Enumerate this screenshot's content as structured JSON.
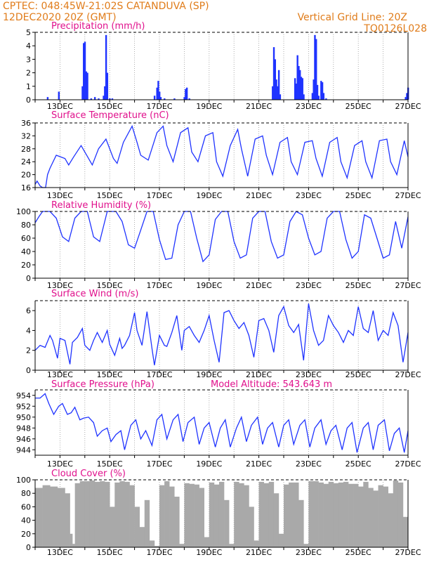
{
  "header": {
    "line1_left": "CPTEC:   048:45W-21:02S   CATANDUVA (SP)",
    "line2_left": "12DEC2020 20Z (GMT)",
    "line1_right": "Vertical Grid Line: 20Z",
    "line2_right": "TQ0126L028"
  },
  "colors": {
    "header": "#e07c1a",
    "title": "#e0108c",
    "series": "#1f33ff",
    "cloud": "#a9a9a9",
    "grid": "#9a9a9a"
  },
  "chart_data": [
    {
      "type": "bar",
      "title": "Precipitation (mm/h)",
      "xticks": [
        "13DEC",
        "15DEC",
        "17DEC",
        "19DEC",
        "21DEC",
        "23DEC",
        "25DEC",
        "27DEC"
      ],
      "ylim": [
        0,
        5
      ],
      "yticks": [
        0,
        1,
        2,
        3,
        4,
        5
      ],
      "x": [
        0.5,
        0.95,
        1.9,
        1.95,
        2.0,
        2.05,
        2.1,
        2.25,
        2.4,
        2.55,
        2.75,
        2.8,
        2.85,
        2.9,
        3.0,
        3.1,
        4.8,
        4.9,
        4.95,
        5.0,
        5.05,
        5.2,
        5.6,
        6.0,
        6.05,
        6.1,
        6.2,
        9.55,
        9.6,
        9.65,
        9.7,
        9.75,
        9.8,
        9.85,
        10.45,
        10.5,
        10.55,
        10.6,
        10.65,
        10.7,
        10.75,
        10.8,
        11.15,
        11.2,
        11.25,
        11.3,
        11.35,
        11.4,
        11.5,
        11.55,
        11.6,
        11.7,
        14.9,
        14.95,
        15.0
      ],
      "values": [
        0.2,
        0.6,
        1.0,
        4.2,
        4.3,
        2.1,
        2.0,
        0.1,
        0.2,
        0.1,
        0.3,
        1.0,
        4.8,
        2.0,
        0.1,
        0.1,
        0.3,
        0.9,
        1.4,
        0.6,
        0.2,
        0.1,
        0.1,
        0.2,
        0.8,
        0.9,
        0.1,
        1.0,
        3.9,
        3.0,
        1.5,
        1.0,
        2.2,
        0.4,
        1.6,
        1.2,
        3.3,
        2.5,
        2.2,
        1.7,
        1.6,
        0.4,
        0.5,
        1.5,
        4.8,
        4.5,
        1.1,
        0.3,
        1.4,
        1.3,
        0.5,
        0.1,
        0.2,
        0.5,
        0.9
      ]
    },
    {
      "type": "line",
      "title": "Surface Temperature (nC)",
      "xticks": [
        "13DEC",
        "15DEC",
        "17DEC",
        "19DEC",
        "21DEC",
        "23DEC",
        "25DEC",
        "27DEC"
      ],
      "ylim": [
        16,
        36
      ],
      "yticks": [
        16,
        20,
        24,
        28,
        32,
        36
      ],
      "x": [
        0,
        0.08,
        0.2,
        0.3,
        0.42,
        0.5,
        0.6,
        0.85,
        1.2,
        1.35,
        1.55,
        1.85,
        2.15,
        2.3,
        2.55,
        2.85,
        3.15,
        3.3,
        3.55,
        3.9,
        4.1,
        4.25,
        4.55,
        4.9,
        5.15,
        5.3,
        5.55,
        5.85,
        6.15,
        6.3,
        6.55,
        6.85,
        7.15,
        7.3,
        7.55,
        7.85,
        8.15,
        8.3,
        8.55,
        8.85,
        9.15,
        9.3,
        9.55,
        9.85,
        10.15,
        10.3,
        10.55,
        10.85,
        11.15,
        11.3,
        11.55,
        11.85,
        12.15,
        12.3,
        12.55,
        12.85,
        13.15,
        13.3,
        13.55,
        13.85,
        14.15,
        14.3,
        14.55,
        14.85,
        15.0
      ],
      "values": [
        17,
        18,
        16.5,
        16,
        16,
        20,
        22,
        26,
        25,
        23,
        25.5,
        29,
        25,
        23,
        28,
        31,
        25,
        23.5,
        30,
        35,
        30,
        26,
        24.5,
        33,
        35,
        29,
        24,
        33,
        34.5,
        27,
        24,
        32,
        33,
        24,
        19.5,
        29,
        34,
        28,
        19.5,
        31,
        32,
        26,
        20,
        30,
        31.5,
        24,
        20,
        30,
        30.5,
        25,
        19.5,
        30,
        31.5,
        24,
        19,
        29,
        30.5,
        24,
        19,
        30.5,
        31,
        24,
        20,
        30.5,
        25.5
      ]
    },
    {
      "type": "line",
      "title": "Relative Humidity (%)",
      "xticks": [
        "13DEC",
        "15DEC",
        "17DEC",
        "19DEC",
        "21DEC",
        "23DEC",
        "25DEC",
        "27DEC"
      ],
      "ylim": [
        0,
        100
      ],
      "yticks": [
        0,
        20,
        40,
        60,
        80,
        100
      ],
      "x": [
        0,
        0.15,
        0.3,
        0.45,
        0.6,
        0.85,
        1.1,
        1.35,
        1.6,
        1.85,
        2.1,
        2.35,
        2.6,
        2.9,
        3.25,
        3.5,
        3.75,
        4.0,
        4.25,
        4.5,
        4.75,
        5.0,
        5.25,
        5.5,
        5.75,
        6.0,
        6.25,
        6.5,
        6.75,
        7.0,
        7.25,
        7.5,
        7.75,
        8.0,
        8.25,
        8.5,
        8.75,
        9.0,
        9.25,
        9.5,
        9.75,
        10.0,
        10.25,
        10.5,
        10.75,
        11.0,
        11.25,
        11.5,
        11.75,
        12.0,
        12.25,
        12.5,
        12.75,
        13.0,
        13.25,
        13.5,
        13.75,
        14.0,
        14.25,
        14.5,
        14.75,
        15.0
      ],
      "values": [
        83,
        92,
        100,
        100,
        100,
        90,
        62,
        55,
        90,
        100,
        100,
        62,
        55,
        100,
        100,
        85,
        50,
        45,
        72,
        100,
        100,
        58,
        28,
        30,
        80,
        100,
        100,
        60,
        25,
        35,
        88,
        100,
        100,
        55,
        30,
        35,
        90,
        100,
        100,
        55,
        30,
        35,
        85,
        100,
        95,
        60,
        35,
        40,
        90,
        100,
        100,
        58,
        30,
        40,
        95,
        90,
        60,
        30,
        35,
        85,
        45,
        92
      ]
    },
    {
      "type": "line",
      "title": "Surface Wind (m/s)",
      "xticks": [
        "13DEC",
        "15DEC",
        "17DEC",
        "19DEC",
        "21DEC",
        "23DEC",
        "25DEC",
        "27DEC"
      ],
      "ylim": [
        0,
        7
      ],
      "yticks": [
        0,
        2,
        4,
        6
      ],
      "x": [
        0,
        0.2,
        0.4,
        0.6,
        0.7,
        0.9,
        1.0,
        1.2,
        1.4,
        1.5,
        1.7,
        1.9,
        2.0,
        2.2,
        2.35,
        2.5,
        2.7,
        2.9,
        3.0,
        3.2,
        3.4,
        3.5,
        3.6,
        3.8,
        4.0,
        4.1,
        4.3,
        4.5,
        4.7,
        4.8,
        5.0,
        5.2,
        5.3,
        5.5,
        5.7,
        5.9,
        6.0,
        6.2,
        6.4,
        6.6,
        6.8,
        7.0,
        7.2,
        7.4,
        7.6,
        7.8,
        8.0,
        8.2,
        8.4,
        8.6,
        8.8,
        9.0,
        9.2,
        9.4,
        9.6,
        9.8,
        10.0,
        10.2,
        10.4,
        10.6,
        10.8,
        11.0,
        11.2,
        11.4,
        11.6,
        11.8,
        12.0,
        12.2,
        12.4,
        12.6,
        12.8,
        13.0,
        13.2,
        13.4,
        13.6,
        13.8,
        14.0,
        14.2,
        14.4,
        14.6,
        14.8,
        15.0
      ],
      "values": [
        2.0,
        2.5,
        2.3,
        3.5,
        3.0,
        1.2,
        3.2,
        3.0,
        0.6,
        2.8,
        3.3,
        4.2,
        2.5,
        2.0,
        3.0,
        3.8,
        2.8,
        4.0,
        2.6,
        1.5,
        3.2,
        2.2,
        2.5,
        3.5,
        5.8,
        4.0,
        2.5,
        5.9,
        2.2,
        0.5,
        3.5,
        2.5,
        2.4,
        3.8,
        5.5,
        2.0,
        4.0,
        4.4,
        3.5,
        2.8,
        4.0,
        5.5,
        3.0,
        0.8,
        5.8,
        6.0,
        5.0,
        4.2,
        4.8,
        3.5,
        1.3,
        5.0,
        5.2,
        4.0,
        1.8,
        5.5,
        6.4,
        4.5,
        3.8,
        4.6,
        1.0,
        6.7,
        4.0,
        2.5,
        3.0,
        5.5,
        4.5,
        3.8,
        2.8,
        4.0,
        3.5,
        6.4,
        4.2,
        3.8,
        6.0,
        3.0,
        4.0,
        3.5,
        5.8,
        4.5,
        0.8,
        3.8
      ]
    },
    {
      "type": "line",
      "title": "Surface Pressure (hPa)",
      "annotation": "Model Altitude: 543.643  m",
      "xticks": [
        "13DEC",
        "15DEC",
        "17DEC",
        "19DEC",
        "21DEC",
        "23DEC",
        "25DEC",
        "27DEC"
      ],
      "ylim": [
        943,
        955
      ],
      "yticks": [
        944,
        946,
        948,
        950,
        952,
        954
      ],
      "x": [
        0,
        0.2,
        0.4,
        0.55,
        0.75,
        0.95,
        1.1,
        1.3,
        1.45,
        1.6,
        1.8,
        1.95,
        2.15,
        2.35,
        2.5,
        2.7,
        2.9,
        3.05,
        3.25,
        3.45,
        3.6,
        3.85,
        4.05,
        4.25,
        4.45,
        4.7,
        4.9,
        5.1,
        5.3,
        5.55,
        5.75,
        5.95,
        6.15,
        6.4,
        6.6,
        6.8,
        7.0,
        7.25,
        7.45,
        7.65,
        7.85,
        8.1,
        8.3,
        8.5,
        8.7,
        8.95,
        9.15,
        9.35,
        9.55,
        9.8,
        10.0,
        10.2,
        10.4,
        10.65,
        10.85,
        11.05,
        11.25,
        11.5,
        11.7,
        11.9,
        12.1,
        12.35,
        12.55,
        12.75,
        12.95,
        13.2,
        13.4,
        13.6,
        13.8,
        14.05,
        14.25,
        14.45,
        14.65,
        14.85,
        15.0
      ],
      "values": [
        953.5,
        953.5,
        954.3,
        952.5,
        950.5,
        952.0,
        952.5,
        950.5,
        950.8,
        951.8,
        949.5,
        949.8,
        950.0,
        949.0,
        946.5,
        947.5,
        948.0,
        945.5,
        946.8,
        947.5,
        944.0,
        948.5,
        949.5,
        946.0,
        947.5,
        944.8,
        949.5,
        950.5,
        946.0,
        949.5,
        950.5,
        945.5,
        949.0,
        950.0,
        945.0,
        948.0,
        949.0,
        944.5,
        948.0,
        949.5,
        944.5,
        948.0,
        950.0,
        945.5,
        948.5,
        950.0,
        945.0,
        948.0,
        949.0,
        944.5,
        948.5,
        949.5,
        945.0,
        948.5,
        949.5,
        944.5,
        948.0,
        949.5,
        945.0,
        947.5,
        948.5,
        944.0,
        948.0,
        949.0,
        943.5,
        948.0,
        949.0,
        944.0,
        948.5,
        949.5,
        943.8,
        947.0,
        948.0,
        943.5,
        947.5
      ]
    },
    {
      "type": "area",
      "title": "Cloud Cover (%)",
      "xticks": [
        "13DEC",
        "15DEC",
        "17DEC",
        "19DEC",
        "21DEC",
        "23DEC",
        "25DEC",
        "27DEC"
      ],
      "ylim": [
        0,
        100
      ],
      "yticks": [
        0,
        20,
        40,
        60,
        80,
        100
      ],
      "x": [
        0,
        0.3,
        0.6,
        0.9,
        1.2,
        1.4,
        1.5,
        1.6,
        1.8,
        2.0,
        2.2,
        2.4,
        2.6,
        2.8,
        3.0,
        3.2,
        3.4,
        3.6,
        3.8,
        4.0,
        4.2,
        4.4,
        4.6,
        4.8,
        5.0,
        5.2,
        5.4,
        5.6,
        5.8,
        6.0,
        6.2,
        6.4,
        6.6,
        6.8,
        7.0,
        7.2,
        7.4,
        7.6,
        7.8,
        8.0,
        8.2,
        8.4,
        8.6,
        8.8,
        9.0,
        9.2,
        9.4,
        9.6,
        9.8,
        10.0,
        10.2,
        10.4,
        10.6,
        10.8,
        11.0,
        11.2,
        11.4,
        11.6,
        11.8,
        12.0,
        12.2,
        12.4,
        12.6,
        12.8,
        13.0,
        13.2,
        13.4,
        13.6,
        13.8,
        14.0,
        14.2,
        14.4,
        14.6,
        14.8,
        15.0
      ],
      "values": [
        88,
        92,
        90,
        88,
        80,
        20,
        5,
        95,
        98,
        98,
        99,
        97,
        98,
        97,
        60,
        96,
        98,
        97,
        92,
        60,
        30,
        70,
        10,
        2,
        92,
        98,
        90,
        75,
        5,
        95,
        94,
        93,
        88,
        15,
        96,
        93,
        97,
        70,
        5,
        97,
        95,
        92,
        60,
        10,
        97,
        95,
        97,
        80,
        20,
        93,
        96,
        96,
        70,
        5,
        98,
        98,
        96,
        94,
        97,
        95,
        96,
        97,
        94,
        94,
        90,
        97,
        88,
        84,
        92,
        90,
        80,
        99,
        96,
        45,
        99
      ]
    }
  ]
}
